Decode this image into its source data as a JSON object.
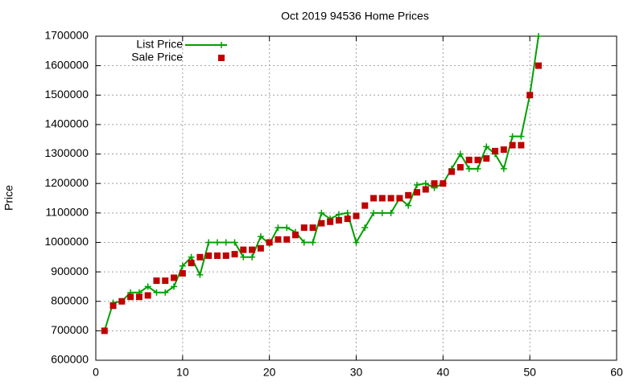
{
  "chart_data": {
    "type": "line",
    "title": "Oct 2019 94536 Home Prices",
    "y_label": "Price",
    "x": [
      1,
      2,
      3,
      4,
      5,
      6,
      7,
      8,
      9,
      10,
      11,
      12,
      13,
      14,
      15,
      16,
      17,
      18,
      19,
      20,
      21,
      22,
      23,
      24,
      25,
      26,
      27,
      28,
      29,
      30,
      31,
      32,
      33,
      34,
      35,
      36,
      37,
      38,
      39,
      40,
      41,
      42,
      43,
      44,
      45,
      46,
      47,
      48,
      49,
      50,
      51
    ],
    "series": [
      {
        "name": "List Price",
        "color": "#00a000",
        "style": "linespoints",
        "values": [
          700000,
          795000,
          800000,
          830000,
          830000,
          850000,
          830000,
          830000,
          850000,
          920000,
          950000,
          890000,
          1000000,
          1000000,
          1000000,
          1000000,
          950000,
          950000,
          1020000,
          995000,
          1050000,
          1050000,
          1035000,
          1000000,
          1000000,
          1100000,
          1080000,
          1095000,
          1100000,
          1000000,
          1050000,
          1100000,
          1100000,
          1100000,
          1150000,
          1125000,
          1195000,
          1200000,
          1185000,
          1200000,
          1250000,
          1300000,
          1250000,
          1250000,
          1325000,
          1300000,
          1250000,
          1360000,
          1360000,
          1500000,
          1700000
        ]
      },
      {
        "name": "Sale Price",
        "color": "#c00000",
        "style": "points",
        "values": [
          700000,
          785000,
          800000,
          815000,
          815000,
          820000,
          870000,
          870000,
          880000,
          895000,
          930000,
          950000,
          955000,
          955000,
          955000,
          960000,
          975000,
          975000,
          980000,
          1000000,
          1010000,
          1010000,
          1025000,
          1050000,
          1050000,
          1065000,
          1070000,
          1075000,
          1080000,
          1090000,
          1125000,
          1150000,
          1150000,
          1150000,
          1150000,
          1160000,
          1170000,
          1180000,
          1200000,
          1200000,
          1240000,
          1255000,
          1280000,
          1280000,
          1285000,
          1310000,
          1315000,
          1330000,
          1330000,
          1500000,
          1600000
        ]
      }
    ],
    "xlim": [
      0,
      60
    ],
    "xticks": [
      0,
      10,
      20,
      30,
      40,
      50,
      60
    ],
    "ylim": [
      600000,
      1700000
    ],
    "yticks": [
      600000,
      700000,
      800000,
      900000,
      1000000,
      1100000,
      1200000,
      1300000,
      1400000,
      1500000,
      1600000,
      1700000
    ],
    "grid": true,
    "legend": "top-left"
  }
}
